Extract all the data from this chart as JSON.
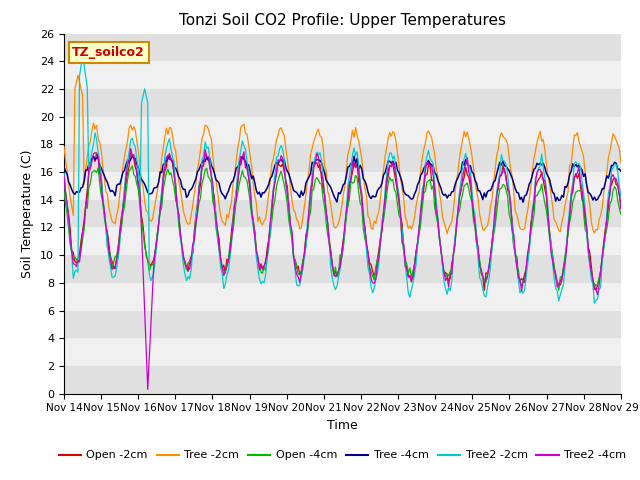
{
  "title": "Tonzi Soil CO2 Profile: Upper Temperatures",
  "xlabel": "Time",
  "ylabel": "Soil Temperature (C)",
  "ylim": [
    0,
    26
  ],
  "legend_label": "TZ_soilco2",
  "x_tick_labels": [
    "Nov 14",
    "Nov 15",
    "Nov 16",
    "Nov 17",
    "Nov 18",
    "Nov 19",
    "Nov 20",
    "Nov 21",
    "Nov 22",
    "Nov 23",
    "Nov 24",
    "Nov 25",
    "Nov 26",
    "Nov 27",
    "Nov 28",
    "Nov 29"
  ],
  "series": {
    "Open -2cm": {
      "color": "#dd0000"
    },
    "Tree -2cm": {
      "color": "#ff8c00"
    },
    "Open -4cm": {
      "color": "#00bb00"
    },
    "Tree -4cm": {
      "color": "#00008b"
    },
    "Tree2 -2cm": {
      "color": "#00cccc"
    },
    "Tree2 -4cm": {
      "color": "#cc00cc"
    }
  },
  "background_bands": [
    [
      0,
      2,
      "#e0e0e0"
    ],
    [
      2,
      4,
      "#f0f0f0"
    ],
    [
      4,
      6,
      "#e0e0e0"
    ],
    [
      6,
      8,
      "#f0f0f0"
    ],
    [
      8,
      10,
      "#e0e0e0"
    ],
    [
      10,
      12,
      "#f0f0f0"
    ],
    [
      12,
      14,
      "#e0e0e0"
    ],
    [
      14,
      16,
      "#f0f0f0"
    ],
    [
      16,
      18,
      "#e0e0e0"
    ],
    [
      18,
      20,
      "#f0f0f0"
    ],
    [
      20,
      22,
      "#e0e0e0"
    ],
    [
      22,
      24,
      "#f0f0f0"
    ],
    [
      24,
      26,
      "#e0e0e0"
    ]
  ],
  "figsize": [
    6.4,
    4.8
  ],
  "dpi": 100
}
